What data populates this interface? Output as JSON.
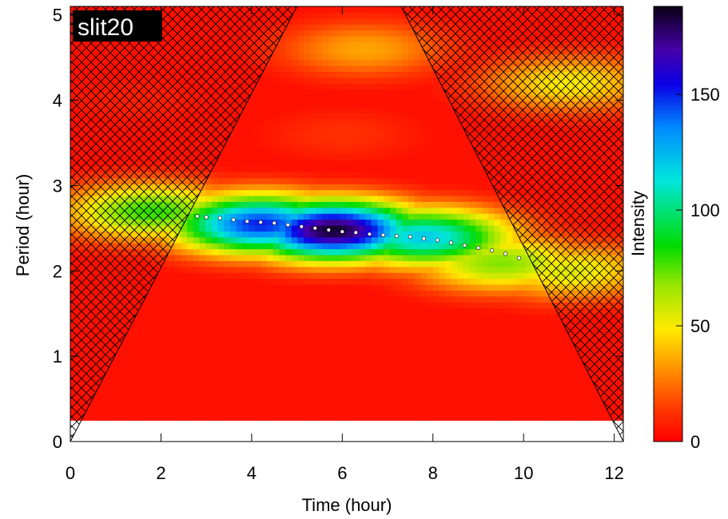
{
  "chart_data": {
    "type": "heatmap",
    "panel_label": "slit20",
    "xlabel": "Time (hour)",
    "ylabel": "Period (hour)",
    "colorbar_label": "Intensity",
    "xlim": [
      0,
      12.2
    ],
    "ylim": [
      0,
      5.1
    ],
    "xticks": [
      0,
      2,
      4,
      6,
      8,
      10,
      12
    ],
    "yticks": [
      0,
      1,
      2,
      3,
      4,
      5
    ],
    "colorbar_range": [
      0,
      188
    ],
    "colorbar_ticks": [
      0,
      50,
      100,
      150
    ],
    "colormap": "rainbow (red low, black high)",
    "cone_of_influence": {
      "hatched": true,
      "left_edge": [
        [
          0,
          0
        ],
        [
          5.0,
          5.1
        ]
      ],
      "right_edge": [
        [
          12.2,
          0
        ],
        [
          7.3,
          5.1
        ]
      ]
    },
    "features": [
      {
        "time": 5.8,
        "period": 2.48,
        "intensity": 185
      },
      {
        "time": 4.2,
        "period": 2.55,
        "intensity": 150
      },
      {
        "time": 7.8,
        "period": 2.4,
        "intensity": 120
      },
      {
        "time": 1.8,
        "period": 2.7,
        "intensity": 80
      },
      {
        "time": 9.5,
        "period": 2.1,
        "intensity": 70
      },
      {
        "time": 11.0,
        "period": 2.0,
        "intensity": 55
      },
      {
        "time": 11.0,
        "period": 4.2,
        "intensity": 50
      },
      {
        "time": 6.5,
        "period": 4.6,
        "intensity": 35
      },
      {
        "time": 6.0,
        "period": 3.6,
        "intensity": 12
      },
      {
        "time": 1.5,
        "period": 4.0,
        "intensity": 8
      },
      {
        "time": 11.0,
        "period": 2.7,
        "intensity": 6
      }
    ],
    "ridge_points": [
      [
        2.8,
        2.64
      ],
      [
        3.0,
        2.63
      ],
      [
        3.3,
        2.62
      ],
      [
        3.6,
        2.6
      ],
      [
        3.9,
        2.58
      ],
      [
        4.2,
        2.57
      ],
      [
        4.5,
        2.56
      ],
      [
        4.8,
        2.54
      ],
      [
        5.1,
        2.52
      ],
      [
        5.4,
        2.5
      ],
      [
        5.7,
        2.48
      ],
      [
        6.0,
        2.46
      ],
      [
        6.3,
        2.45
      ],
      [
        6.6,
        2.43
      ],
      [
        6.9,
        2.42
      ],
      [
        7.2,
        2.41
      ],
      [
        7.5,
        2.4
      ],
      [
        7.8,
        2.38
      ],
      [
        8.1,
        2.36
      ],
      [
        8.4,
        2.33
      ],
      [
        8.7,
        2.3
      ],
      [
        9.0,
        2.27
      ],
      [
        9.3,
        2.24
      ],
      [
        9.6,
        2.2
      ],
      [
        9.9,
        2.15
      ]
    ]
  }
}
